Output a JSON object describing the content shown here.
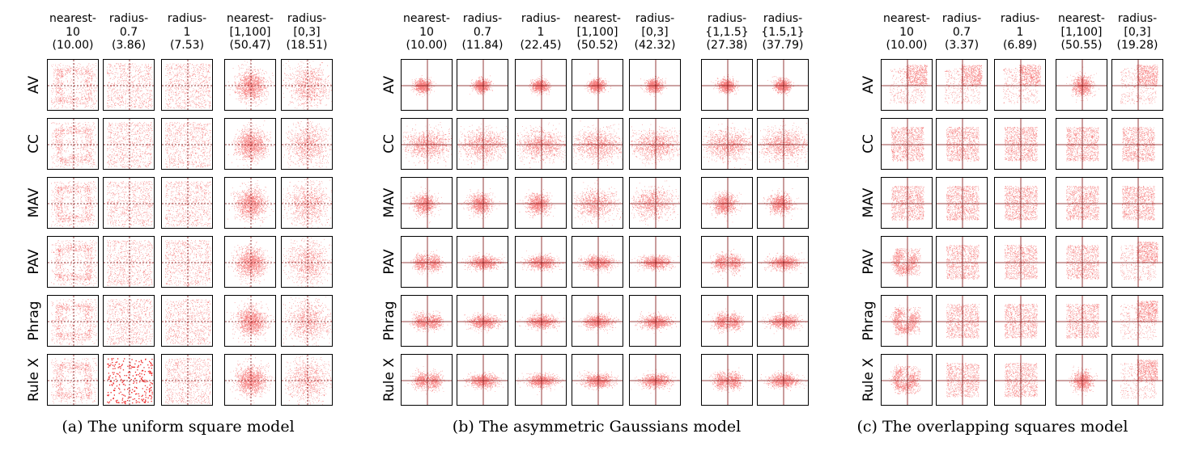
{
  "colors": {
    "points": "#ee1111",
    "axes": "#7a0a0a",
    "border": "#000000"
  },
  "row_labels": [
    "AV",
    "CC",
    "MAV",
    "PAV",
    "Phrag",
    "Rule X"
  ],
  "panels": [
    {
      "caption": "(a) The uniform square model",
      "columns": [
        {
          "label": "nearest-\n10\n(10.00)"
        },
        {
          "label": "radius-\n0.7\n(3.86)"
        },
        {
          "label": "radius-\n1\n(7.53)"
        },
        {
          "label": "nearest-\n[1,100]\n(50.47)"
        },
        {
          "label": "radius-\n[0,3]\n(18.51)"
        }
      ]
    },
    {
      "caption": "(b) The asymmetric Gaussians model",
      "columns": [
        {
          "label": "nearest-\n10\n(10.00)"
        },
        {
          "label": "radius-\n0.7\n(11.84)"
        },
        {
          "label": "radius-\n1\n(22.45)"
        },
        {
          "label": "nearest-\n[1,100]\n(50.52)"
        },
        {
          "label": "radius-\n[0,3]\n(42.32)"
        },
        {
          "label": "radius-\n{1,1.5}\n(27.38)"
        },
        {
          "label": "radius-\n{1.5,1}\n(37.79)"
        }
      ]
    },
    {
      "caption": "(c) The overlapping squares model",
      "columns": [
        {
          "label": "nearest-\n10\n(10.00)"
        },
        {
          "label": "radius-\n0.7\n(3.37)"
        },
        {
          "label": "radius-\n1\n(6.89)"
        },
        {
          "label": "nearest-\n[1,100]\n(50.55)"
        },
        {
          "label": "radius-\n[0,3]\n(19.28)"
        }
      ]
    }
  ]
}
